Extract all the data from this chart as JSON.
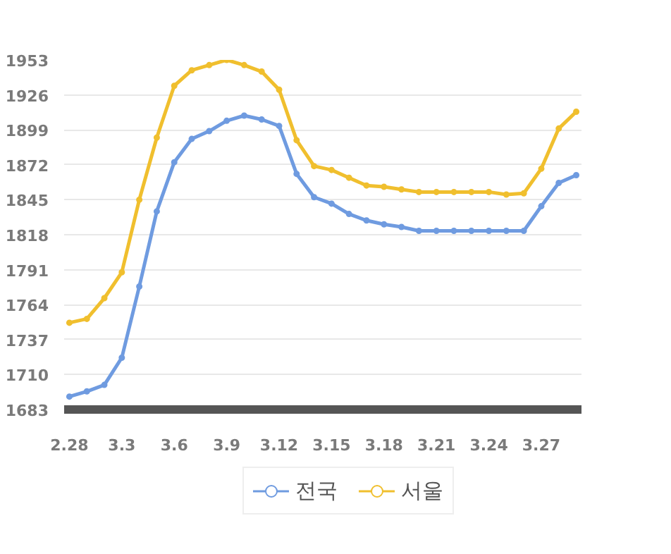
{
  "chart_data": {
    "type": "line",
    "categories": [
      "2.28",
      null,
      null,
      "3.3",
      null,
      null,
      "3.6",
      null,
      null,
      "3.9",
      null,
      null,
      "3.12",
      null,
      null,
      "3.15",
      null,
      null,
      "3.18",
      null,
      null,
      "3.21",
      null,
      null,
      "3.24",
      null,
      null,
      "3.27",
      null,
      null
    ],
    "series": [
      {
        "name": "전국",
        "color": "#6f9be0",
        "values": [
          1693,
          1697,
          1702,
          1723,
          1778,
          1836,
          1874,
          1892,
          1898,
          1906,
          1910,
          1907,
          1902,
          1865,
          1847,
          1842,
          1834,
          1829,
          1826,
          1824,
          1821,
          1821,
          1821,
          1821,
          1821,
          1821,
          1821,
          1840,
          1858,
          1864
        ]
      },
      {
        "name": "서울",
        "color": "#f0bf2e",
        "values": [
          1750,
          1753,
          1769,
          1789,
          1845,
          1893,
          1933,
          1945,
          1949,
          1953,
          1949,
          1944,
          1930,
          1891,
          1871,
          1868,
          1862,
          1856,
          1855,
          1853,
          1851,
          1851,
          1851,
          1851,
          1851,
          1849,
          1850,
          1869,
          1900,
          1913
        ]
      }
    ],
    "ylim": [
      1683,
      1953
    ],
    "yticks": [
      1683,
      1710,
      1737,
      1764,
      1791,
      1818,
      1845,
      1872,
      1899,
      1926,
      1953
    ],
    "grid": "y",
    "legend": "bottom",
    "marker": "circle",
    "line_style": "solid"
  }
}
